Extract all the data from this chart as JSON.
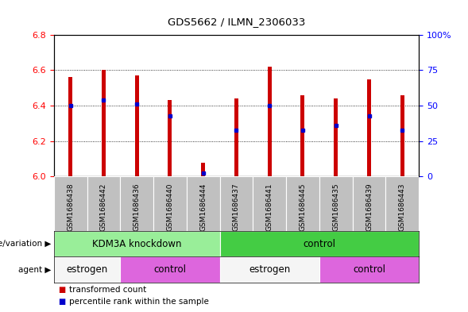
{
  "title": "GDS5662 / ILMN_2306033",
  "samples": [
    "GSM1686438",
    "GSM1686442",
    "GSM1686436",
    "GSM1686440",
    "GSM1686444",
    "GSM1686437",
    "GSM1686441",
    "GSM1686445",
    "GSM1686435",
    "GSM1686439",
    "GSM1686443"
  ],
  "red_values": [
    6.56,
    6.6,
    6.57,
    6.43,
    6.08,
    6.44,
    6.62,
    6.46,
    6.44,
    6.55,
    6.46
  ],
  "blue_values": [
    6.4,
    6.43,
    6.41,
    6.34,
    6.02,
    6.26,
    6.4,
    6.26,
    6.29,
    6.34,
    6.26
  ],
  "ylim_left": [
    6.0,
    6.8
  ],
  "ylim_right": [
    0,
    100
  ],
  "yticks_left": [
    6.0,
    6.2,
    6.4,
    6.6,
    6.8
  ],
  "yticks_right": [
    0,
    25,
    50,
    75,
    100
  ],
  "bar_width": 0.12,
  "bar_color": "#cc0000",
  "blue_color": "#0000cc",
  "bg_color": "#ffffff",
  "plot_bg": "#ffffff",
  "sample_bg": "#c0c0c0",
  "genotype_groups": [
    {
      "text": "KDM3A knockdown",
      "start": 0,
      "end": 4,
      "color": "#99ee99"
    },
    {
      "text": "control",
      "start": 5,
      "end": 10,
      "color": "#44cc44"
    }
  ],
  "agent_groups": [
    {
      "text": "estrogen",
      "start": 0,
      "end": 1,
      "color": "#f5f5f5"
    },
    {
      "text": "control",
      "start": 2,
      "end": 4,
      "color": "#dd66dd"
    },
    {
      "text": "estrogen",
      "start": 5,
      "end": 7,
      "color": "#f5f5f5"
    },
    {
      "text": "control",
      "start": 8,
      "end": 10,
      "color": "#dd66dd"
    }
  ],
  "legend_items": [
    {
      "label": "transformed count",
      "color": "#cc0000"
    },
    {
      "label": "percentile rank within the sample",
      "color": "#0000cc"
    }
  ],
  "genotype_label": "genotype/variation",
  "agent_label": "agent"
}
